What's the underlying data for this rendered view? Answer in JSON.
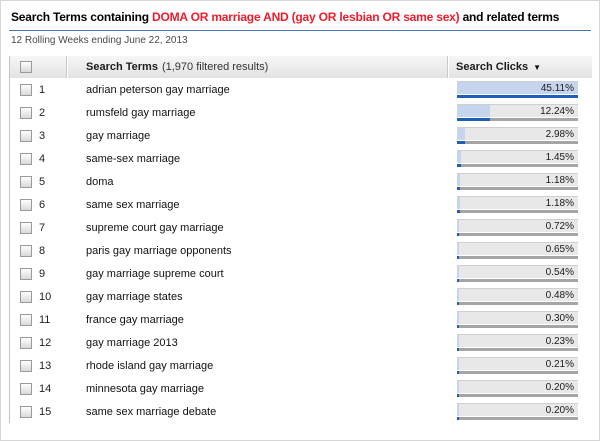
{
  "title": {
    "prefix": "Search Terms containing ",
    "highlight": "DOMA OR marriage AND (gay OR lesbian OR same sex)",
    "suffix": " and related terms"
  },
  "subtitle": "12 Rolling Weeks ending June 22, 2013",
  "colors": {
    "title_highlight": "#ed1c2c",
    "divider_blue": "#4576b5",
    "bar_fill": "#c7d4ee",
    "bar_background": "#e8e8e8",
    "bar_underline_blue": "#1d5fb4",
    "bar_underline_gray": "#a5a5a5"
  },
  "table": {
    "header": {
      "search_terms_label": "Search Terms",
      "search_terms_note": "(1,970 filtered results)",
      "search_clicks_label": "Search Clicks",
      "sort_icon": "▼"
    },
    "rows": [
      {
        "rank": "1",
        "term": "adrian peterson gay marriage",
        "clicks": "45.11%",
        "value": 45.11
      },
      {
        "rank": "2",
        "term": "rumsfeld gay marriage",
        "clicks": "12.24%",
        "value": 12.24
      },
      {
        "rank": "3",
        "term": "gay marriage",
        "clicks": "2.98%",
        "value": 2.98
      },
      {
        "rank": "4",
        "term": "same-sex marriage",
        "clicks": "1.45%",
        "value": 1.45
      },
      {
        "rank": "5",
        "term": "doma",
        "clicks": "1.18%",
        "value": 1.18
      },
      {
        "rank": "6",
        "term": "same sex marriage",
        "clicks": "1.18%",
        "value": 1.18
      },
      {
        "rank": "7",
        "term": "supreme court gay marriage",
        "clicks": "0.72%",
        "value": 0.72
      },
      {
        "rank": "8",
        "term": "paris gay marriage opponents",
        "clicks": "0.65%",
        "value": 0.65
      },
      {
        "rank": "9",
        "term": "gay marriage supreme court",
        "clicks": "0.54%",
        "value": 0.54
      },
      {
        "rank": "10",
        "term": "gay marriage states",
        "clicks": "0.48%",
        "value": 0.48
      },
      {
        "rank": "11",
        "term": "france gay marriage",
        "clicks": "0.30%",
        "value": 0.3
      },
      {
        "rank": "12",
        "term": "gay marriage 2013",
        "clicks": "0.23%",
        "value": 0.23
      },
      {
        "rank": "13",
        "term": "rhode island gay marriage",
        "clicks": "0.21%",
        "value": 0.21
      },
      {
        "rank": "14",
        "term": "minnesota gay marriage",
        "clicks": "0.20%",
        "value": 0.2
      },
      {
        "rank": "15",
        "term": "same sex marriage debate",
        "clicks": "0.20%",
        "value": 0.2
      }
    ]
  },
  "chart_data": {
    "type": "bar",
    "title": "Search Clicks by Search Term",
    "categories": [
      "adrian peterson gay marriage",
      "rumsfeld gay marriage",
      "gay marriage",
      "same-sex marriage",
      "doma",
      "same sex marriage",
      "supreme court gay marriage",
      "paris gay marriage opponents",
      "gay marriage supreme court",
      "gay marriage states",
      "france gay marriage",
      "gay marriage 2013",
      "rhode island gay marriage",
      "minnesota gay marriage",
      "same sex marriage debate"
    ],
    "values": [
      45.11,
      12.24,
      2.98,
      1.45,
      1.18,
      1.18,
      0.72,
      0.65,
      0.54,
      0.48,
      0.3,
      0.23,
      0.21,
      0.2,
      0.2
    ],
    "xlabel": "Search Clicks (%)",
    "ylabel": "Search Terms",
    "xmax": 45.11,
    "orientation": "horizontal"
  }
}
